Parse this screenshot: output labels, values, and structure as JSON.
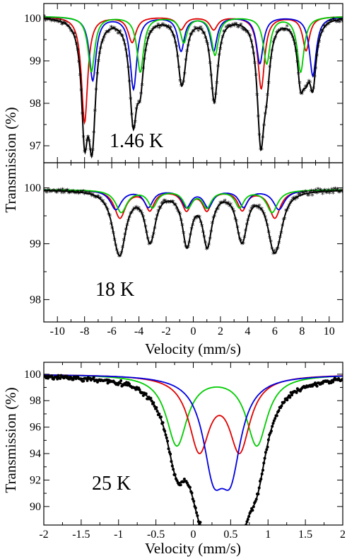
{
  "figure": {
    "ylabel_top": "Transmission (%)",
    "ylabel_bottom": "Transmission (%)",
    "xlabel_top": "Velocity (mm/s)",
    "xlabel_bottom": "Velocity (mm/s)",
    "colors": {
      "fit_total": "#000000",
      "red": "#e00000",
      "blue": "#0000e0",
      "green": "#00cc00",
      "data": "#000000"
    }
  },
  "chart_data": [
    {
      "type": "scatter",
      "label": "1.46 K",
      "xlim": [
        -11,
        11
      ],
      "ylim": [
        96.6,
        100.35
      ],
      "yticks": [
        97,
        98,
        99,
        100
      ],
      "show_x_tick_labels": false,
      "baseline": 100.05,
      "series": [
        {
          "color": "red",
          "lines": [
            {
              "pos": -8.0,
              "depth": 2.5,
              "width": 0.28
            },
            {
              "pos": -4.5,
              "depth": 0.6,
              "width": 0.35
            },
            {
              "pos": -0.9,
              "depth": 0.3,
              "width": 0.35
            },
            {
              "pos": 1.5,
              "depth": 0.3,
              "width": 0.35
            },
            {
              "pos": 5.0,
              "depth": 1.7,
              "width": 0.3
            },
            {
              "pos": 8.3,
              "depth": 0.8,
              "width": 0.3
            }
          ]
        },
        {
          "color": "blue",
          "lines": [
            {
              "pos": -7.4,
              "depth": 1.5,
              "width": 0.3
            },
            {
              "pos": -4.4,
              "depth": 1.7,
              "width": 0.3
            },
            {
              "pos": -0.9,
              "depth": 0.8,
              "width": 0.3
            },
            {
              "pos": 1.5,
              "depth": 0.8,
              "width": 0.3
            },
            {
              "pos": 4.9,
              "depth": 1.1,
              "width": 0.3
            },
            {
              "pos": 8.8,
              "depth": 1.4,
              "width": 0.3
            }
          ]
        },
        {
          "color": "green",
          "lines": [
            {
              "pos": -7.5,
              "depth": 1.3,
              "width": 0.3
            },
            {
              "pos": -3.9,
              "depth": 1.3,
              "width": 0.3
            },
            {
              "pos": -0.7,
              "depth": 0.6,
              "width": 0.3
            },
            {
              "pos": 1.6,
              "depth": 0.9,
              "width": 0.3
            },
            {
              "pos": 5.4,
              "depth": 1.1,
              "width": 0.3
            },
            {
              "pos": 7.9,
              "depth": 1.3,
              "width": 0.3
            }
          ]
        }
      ]
    },
    {
      "type": "scatter",
      "label": "18 K",
      "xlim": [
        -11,
        11
      ],
      "ylim": [
        97.6,
        100.45
      ],
      "yticks": [
        98,
        99,
        100
      ],
      "xticks": [
        -10,
        -8,
        -6,
        -4,
        -2,
        0,
        2,
        4,
        6,
        8,
        10
      ],
      "baseline": 99.97,
      "series": [
        {
          "color": "red",
          "lines": [
            {
              "pos": -5.4,
              "depth": 0.5,
              "width": 0.5
            },
            {
              "pos": -3.2,
              "depth": 0.35,
              "width": 0.4
            },
            {
              "pos": -0.5,
              "depth": 0.35,
              "width": 0.4
            },
            {
              "pos": 1.0,
              "depth": 0.35,
              "width": 0.4
            },
            {
              "pos": 3.6,
              "depth": 0.35,
              "width": 0.4
            },
            {
              "pos": 6.0,
              "depth": 0.5,
              "width": 0.5
            }
          ]
        },
        {
          "color": "blue",
          "lines": [
            {
              "pos": -5.7,
              "depth": 0.35,
              "width": 0.5
            },
            {
              "pos": -3.3,
              "depth": 0.3,
              "width": 0.4
            },
            {
              "pos": -0.5,
              "depth": 0.3,
              "width": 0.4
            },
            {
              "pos": 1.1,
              "depth": 0.3,
              "width": 0.4
            },
            {
              "pos": 3.7,
              "depth": 0.3,
              "width": 0.4
            },
            {
              "pos": 6.3,
              "depth": 0.35,
              "width": 0.5
            }
          ]
        },
        {
          "color": "green",
          "lines": [
            {
              "pos": -5.3,
              "depth": 0.4,
              "width": 0.5
            },
            {
              "pos": -3.0,
              "depth": 0.3,
              "width": 0.4
            },
            {
              "pos": -0.4,
              "depth": 0.3,
              "width": 0.4
            },
            {
              "pos": 1.0,
              "depth": 0.3,
              "width": 0.4
            },
            {
              "pos": 3.4,
              "depth": 0.3,
              "width": 0.4
            },
            {
              "pos": 5.8,
              "depth": 0.4,
              "width": 0.5
            }
          ]
        }
      ]
    },
    {
      "type": "scatter",
      "label": "25 K",
      "xlim": [
        -2,
        2
      ],
      "ylim": [
        88.6,
        100.9
      ],
      "yticks": [
        90,
        92,
        94,
        96,
        98,
        100
      ],
      "xticks": [
        -2,
        -1.5,
        -1,
        -0.5,
        0,
        0.5,
        1,
        1.5,
        2
      ],
      "baseline": 100.0,
      "series": [
        {
          "color": "green",
          "lines": [
            {
              "pos": -0.22,
              "depth": 5.3,
              "width": 0.17
            },
            {
              "pos": 0.85,
              "depth": 5.3,
              "width": 0.17
            }
          ]
        },
        {
          "color": "red",
          "lines": [
            {
              "pos": 0.08,
              "depth": 5.5,
              "width": 0.17
            },
            {
              "pos": 0.62,
              "depth": 5.5,
              "width": 0.17
            }
          ]
        },
        {
          "color": "blue",
          "lines": [
            {
              "pos": 0.27,
              "depth": 6.3,
              "width": 0.17
            },
            {
              "pos": 0.5,
              "depth": 6.3,
              "width": 0.17
            }
          ]
        }
      ]
    }
  ]
}
